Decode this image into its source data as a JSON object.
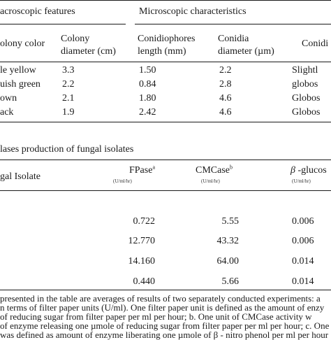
{
  "table1": {
    "group_headers": [
      "acroscopic features",
      "Microscopic characteristics"
    ],
    "column_headers": [
      [
        "olony color"
      ],
      [
        "Colony",
        "diameter (cm)"
      ],
      [
        "Conidiophores",
        "length (mm)"
      ],
      [
        "Conidia",
        "diameter (µm)"
      ],
      [
        "Conidi"
      ]
    ],
    "rows": [
      [
        "le yellow",
        "3.3",
        "1.50",
        "2.2",
        "Slightl"
      ],
      [
        "uish green",
        "2.2",
        "0.84",
        "2.8",
        "globos"
      ],
      [
        "own",
        "2.1",
        "1.80",
        "4.6",
        "Globos"
      ],
      [
        "ack",
        "1.9",
        "2.42",
        "4.6",
        "Globos"
      ]
    ]
  },
  "table2": {
    "caption": "lases production of fungal isolates",
    "headers": {
      "isolate": "gal Isolate",
      "fpase": "FPase",
      "fpase_sup": "a",
      "cmcase": "CMCase",
      "cmcase_sup": "b",
      "gluco_beta": "β",
      "gluco": " -glucos",
      "unit": "(U/ml/hr)"
    },
    "rows": [
      [
        "0.722",
        "5.55",
        "0.006"
      ],
      [
        "12.770",
        "43.32",
        "0.006"
      ],
      [
        "14.160",
        "64.00",
        "0.014"
      ],
      [
        "0.440",
        "5.66",
        "0.014"
      ]
    ]
  },
  "footnotes": [
    "presented in the table are averages of results of two separately conducted experiments: a",
    "n terms of filter paper units (U/ml). One filter paper unit is defined as the amount of enzy",
    "of reducing sugar from filter paper per ml per hour; b. One unit of CMCase activity w",
    "of enzyme releasing one µmole of reducing sugar from filter paper per ml per hour; c. One",
    "was defined as amount of enzyme liberating one µmole of β - nitro phenol per ml per hour"
  ]
}
